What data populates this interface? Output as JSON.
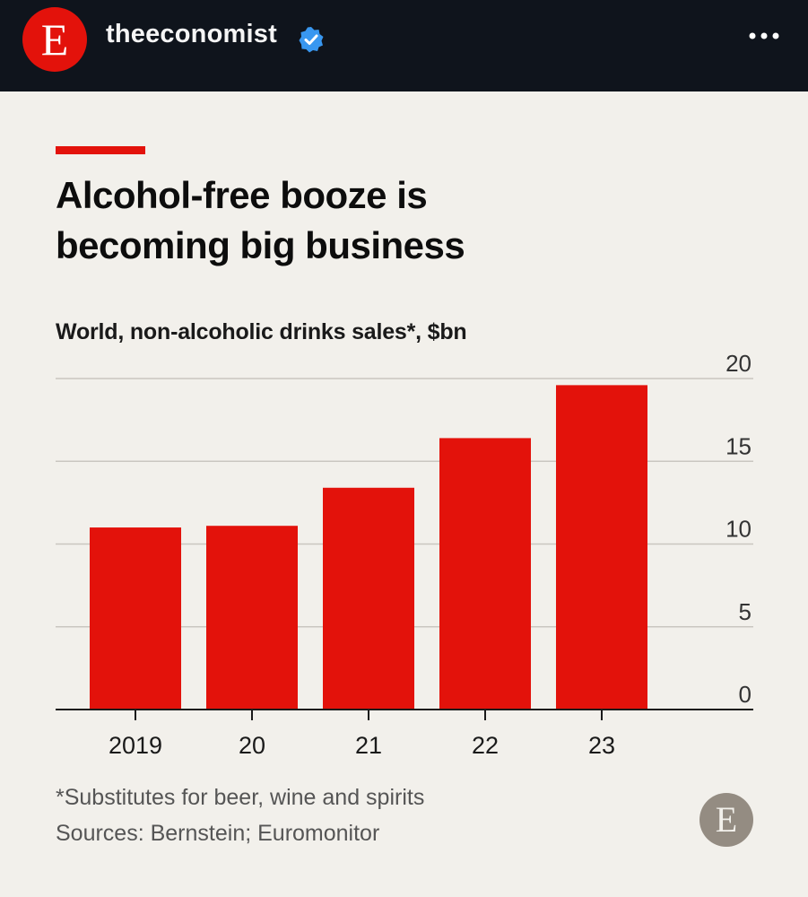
{
  "header": {
    "avatar_letter": "E",
    "account_name": "theeconomist",
    "verified_icon": "verified-badge-icon",
    "more_icon": "more-options-icon"
  },
  "colors": {
    "brand_red": "#e3120b",
    "header_bg": "#0f141c",
    "card_bg": "#f2f0eb",
    "verified_blue": "#3897f0"
  },
  "chart_data": {
    "type": "bar",
    "title": "Alcohol-free booze is\nbecoming big business",
    "subtitle": "World, non-alcoholic drinks sales*, $bn",
    "categories": [
      "2019",
      "20",
      "21",
      "22",
      "23"
    ],
    "values": [
      11,
      11.1,
      13.4,
      16.4,
      19.6
    ],
    "ylim": [
      0,
      20
    ],
    "yticks": [
      0,
      5,
      10,
      15,
      20
    ],
    "y_axis_position": "right",
    "grid": true,
    "bar_color": "#e3120b"
  },
  "footnotes": {
    "note": "*Substitutes for beer, wine and spirits",
    "sources": "Sources: Bernstein; Euromonitor"
  },
  "watermark": {
    "letter": "E"
  }
}
